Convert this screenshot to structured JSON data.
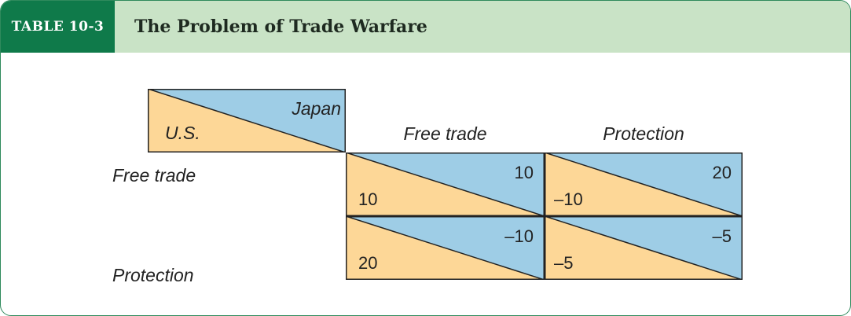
{
  "header": {
    "tag": "TABLE 10-3",
    "title": "The Problem of Trade Warfare"
  },
  "corner": {
    "row_player": "U.S.",
    "col_player": "Japan"
  },
  "columns": [
    "Free trade",
    "Protection"
  ],
  "rows": [
    "Free trade",
    "Protection"
  ],
  "payoffs": [
    [
      {
        "us": "10",
        "japan": "10"
      },
      {
        "us": "–10",
        "japan": "20"
      }
    ],
    [
      {
        "us": "20",
        "japan": "–10"
      },
      {
        "us": "–5",
        "japan": "–5"
      }
    ]
  ],
  "colors": {
    "us_fill": "#fdd797",
    "japan_fill": "#9ecde6",
    "tag_bg": "#0f7a4a",
    "header_bg": "#c9e3c6"
  }
}
